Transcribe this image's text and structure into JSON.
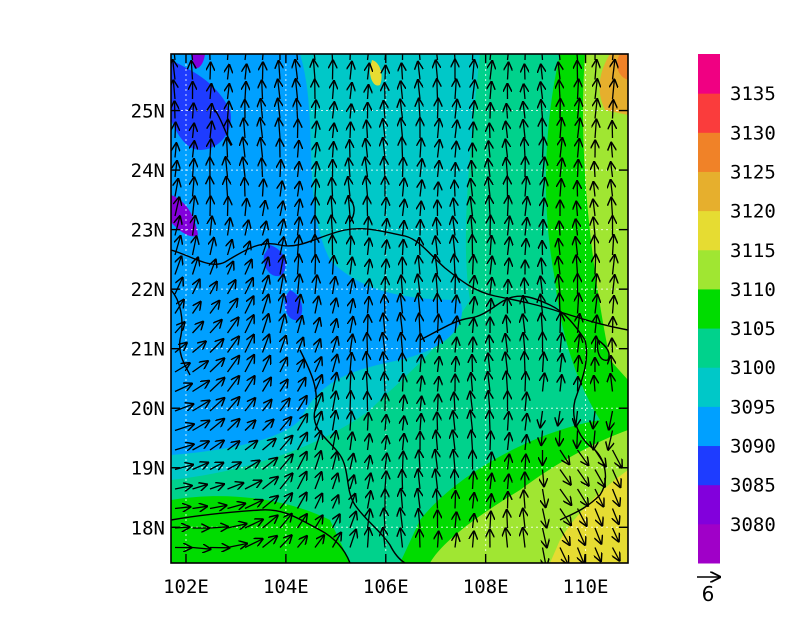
{
  "map": {
    "lon_range": [
      101.7,
      110.85
    ],
    "lat_range": [
      17.4,
      25.95
    ],
    "lon_ticks": [
      {
        "value": 102,
        "label": "102E"
      },
      {
        "value": 104,
        "label": "104E"
      },
      {
        "value": 106,
        "label": "106E"
      },
      {
        "value": 108,
        "label": "108E"
      },
      {
        "value": 110,
        "label": "110E"
      }
    ],
    "lat_ticks": [
      {
        "value": 18,
        "label": "18N"
      },
      {
        "value": 19,
        "label": "19N"
      },
      {
        "value": 20,
        "label": "20N"
      },
      {
        "value": 21,
        "label": "21N"
      },
      {
        "value": 22,
        "label": "22N"
      },
      {
        "value": 23,
        "label": "23N"
      },
      {
        "value": 24,
        "label": "24N"
      },
      {
        "value": 25,
        "label": "25N"
      }
    ],
    "background_field": "contour-fill",
    "vector_field": "wind-vectors",
    "gridlines": "dotted"
  },
  "colorbar": {
    "levels": [
      {
        "label": "",
        "color": "#a000c8"
      },
      {
        "label": "3080",
        "color": "#8200dc"
      },
      {
        "label": "3085",
        "color": "#1e3cff"
      },
      {
        "label": "3090",
        "color": "#00a0ff"
      },
      {
        "label": "3095",
        "color": "#00c8c8"
      },
      {
        "label": "3100",
        "color": "#00d28c"
      },
      {
        "label": "3105",
        "color": "#00dc00"
      },
      {
        "label": "3110",
        "color": "#a0e632"
      },
      {
        "label": "3115",
        "color": "#e6dc32"
      },
      {
        "label": "3120",
        "color": "#e6af2d"
      },
      {
        "label": "3125",
        "color": "#f08228"
      },
      {
        "label": "3130",
        "color": "#fa3c3c"
      },
      {
        "label": "3135",
        "color": "#f00082"
      }
    ]
  },
  "reference_vector": {
    "label": "6"
  }
}
